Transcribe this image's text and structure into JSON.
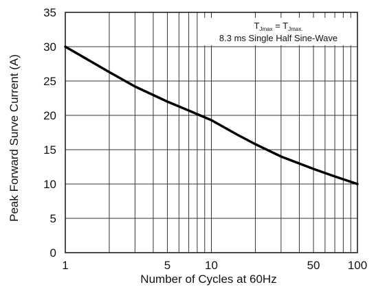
{
  "chart_data": {
    "type": "line",
    "title": "",
    "xlabel": "Number of Cycles at 60Hz",
    "ylabel": "Peak Forward Surve Current (A)",
    "x_scale": "log",
    "xlim": [
      1,
      100
    ],
    "ylim": [
      0,
      35
    ],
    "x_ticks": [
      1,
      5,
      10,
      50,
      100
    ],
    "x_tick_labels": [
      "1",
      "5",
      "10",
      "50",
      "100"
    ],
    "y_ticks": [
      0,
      5,
      10,
      15,
      20,
      25,
      30,
      35
    ],
    "y_tick_labels": [
      "0",
      "5",
      "10",
      "15",
      "20",
      "25",
      "30",
      "35"
    ],
    "grid": true,
    "legend": "none",
    "annotation": {
      "line1_prefix": "T",
      "line1_sub1": "Jmax",
      "line1_eq": " = T",
      "line1_sub2": "Jmax.",
      "line2": "8.3 ms Single Half Sine-Wave"
    },
    "series": [
      {
        "x": [
          1,
          2,
          3,
          5,
          7,
          10,
          15,
          20,
          30,
          50,
          70,
          100
        ],
        "y": [
          30,
          26.3,
          24.2,
          22.0,
          20.7,
          19.3,
          17.2,
          15.8,
          14.0,
          12.2,
          11.1,
          10.0
        ]
      }
    ]
  }
}
